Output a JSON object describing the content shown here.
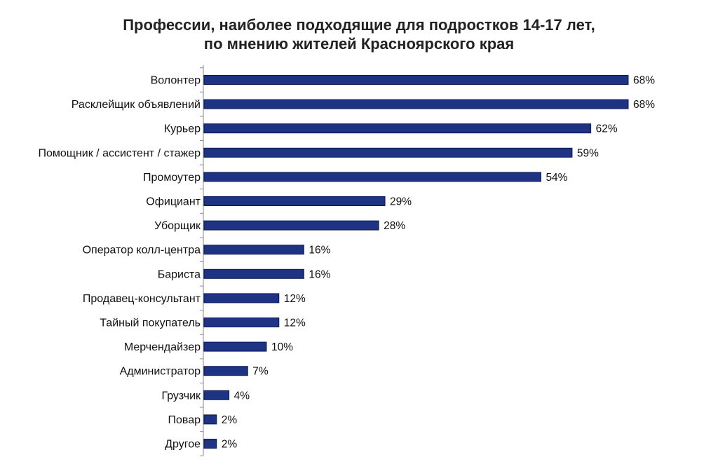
{
  "chart_data": {
    "type": "bar",
    "orientation": "horizontal",
    "title_lines": [
      "Профессии, наиболее подходящие для подростков 14-17 лет,",
      "по мнению жителей Красноярского края"
    ],
    "categories": [
      "Волонтер",
      "Расклейщик объявлений",
      "Курьер",
      "Помощник / ассистент / стажер",
      "Промоутер",
      "Официант",
      "Уборщик",
      "Оператор колл-центра",
      "Бариста",
      "Продавец-консультант",
      "Тайный покупатель",
      "Мерчендайзер",
      "Администратор",
      "Грузчик",
      "Повар",
      "Другое"
    ],
    "values": [
      68,
      68,
      62,
      59,
      54,
      29,
      28,
      16,
      16,
      12,
      12,
      10,
      7,
      4,
      2,
      2
    ],
    "value_labels": [
      "68%",
      "68%",
      "62%",
      "59%",
      "54%",
      "29%",
      "28%",
      "16%",
      "16%",
      "12%",
      "12%",
      "10%",
      "7%",
      "4%",
      "2%",
      "2%"
    ],
    "xlim": [
      0,
      68
    ],
    "grid": false,
    "legend": "none",
    "bar_color": "#1e3384"
  }
}
